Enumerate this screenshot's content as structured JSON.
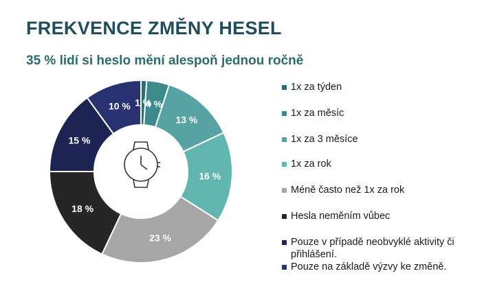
{
  "header": {
    "title": "FREKVENCE ZMĚNY HESEL",
    "subtitle": "35 % lidí si heslo mění alespoň jednou ročně"
  },
  "center_icon": "wristwatch-icon",
  "chart_data": {
    "type": "pie",
    "variant": "donut",
    "legend_position": "right",
    "categories": [
      "1x za týden",
      "1x za měsíc",
      "1x za 3 měsíce",
      "1x za rok",
      "Méně často než 1x za rok",
      "Hesla neměním vůbec",
      "Pouze v případě neobvyklé aktivity či přihlášení.",
      "Pouze na základě výzvy ke změně."
    ],
    "values": [
      1,
      4,
      13,
      16,
      23,
      18,
      15,
      10
    ],
    "labels": [
      "1 %",
      "4 %",
      "13 %",
      "16 %",
      "23 %",
      "18 %",
      "15 %",
      "10 %"
    ],
    "colors": [
      "#2d6f78",
      "#3d8a8c",
      "#57a3a3",
      "#62b6b0",
      "#a6a6a6",
      "#262626",
      "#1b2452",
      "#283270"
    ],
    "label_colors": [
      "#ffffff",
      "#ffffff",
      "#ffffff",
      "#ffffff",
      "#ffffff",
      "#ffffff",
      "#ffffff",
      "#ffffff"
    ]
  }
}
